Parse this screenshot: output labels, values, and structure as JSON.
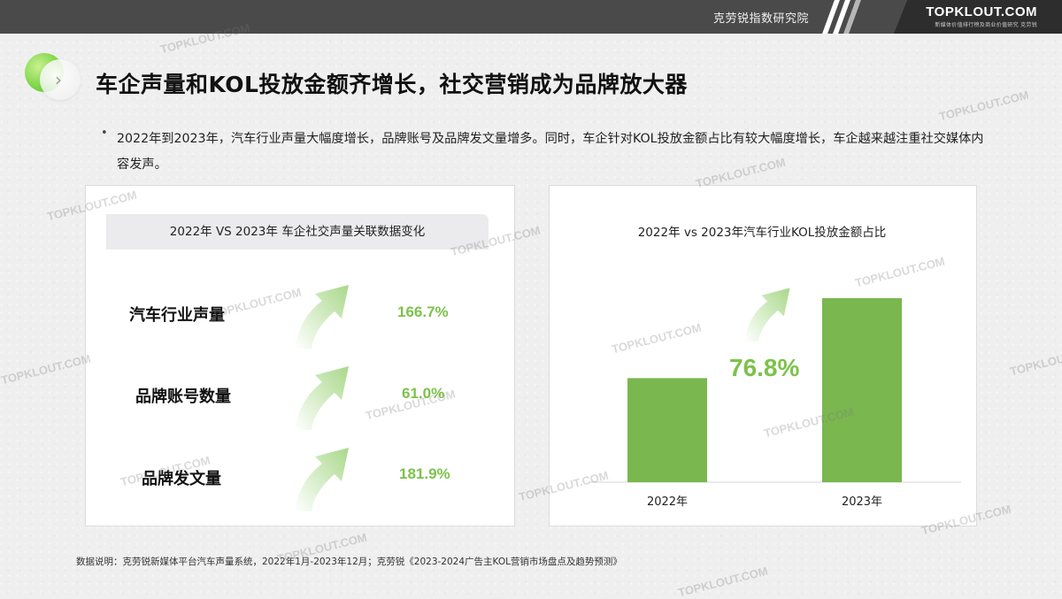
{
  "header": {
    "institute": "克劳锐指数研究院",
    "logo": "TOPKLOUT.COM",
    "logo_sub": "新媒体价值排行榜及商业价值研究 克劳锐"
  },
  "title": "车企声量和KOL投放金额齐增长，社交营销成为品牌放大器",
  "bullet": "2022年到2023年，汽车行业声量大幅度增长，品牌账号及品牌发文量增多。同时，车企针对KOL投放金额占比有较大幅度增长，车企越来越注重社交媒体内容发声。",
  "left_panel": {
    "header": "2022年 VS 2023年  车企社交声量关联数据变化",
    "metrics": [
      {
        "label": "汽车行业声量",
        "value": "166.7%"
      },
      {
        "label": "品牌账号数量",
        "value": "61.0%"
      },
      {
        "label": "品牌发文量",
        "value": "181.9%"
      }
    ]
  },
  "chart_data": {
    "type": "bar",
    "title": "2022年 vs 2023年汽车行业KOL投放金额占比",
    "categories": [
      "2022年",
      "2023年"
    ],
    "values": [
      1.0,
      1.768
    ],
    "annotation": "76.8%",
    "color": "#7ab74f",
    "xlabel": "",
    "ylabel": ""
  },
  "watermark": "TOPKLOUT.COM",
  "footnote": "数据说明：克劳锐新媒体平台汽车声量系统，2022年1月-2023年12月；克劳锐《2023-2024广告主KOL营销市场盘点及趋势预测》"
}
